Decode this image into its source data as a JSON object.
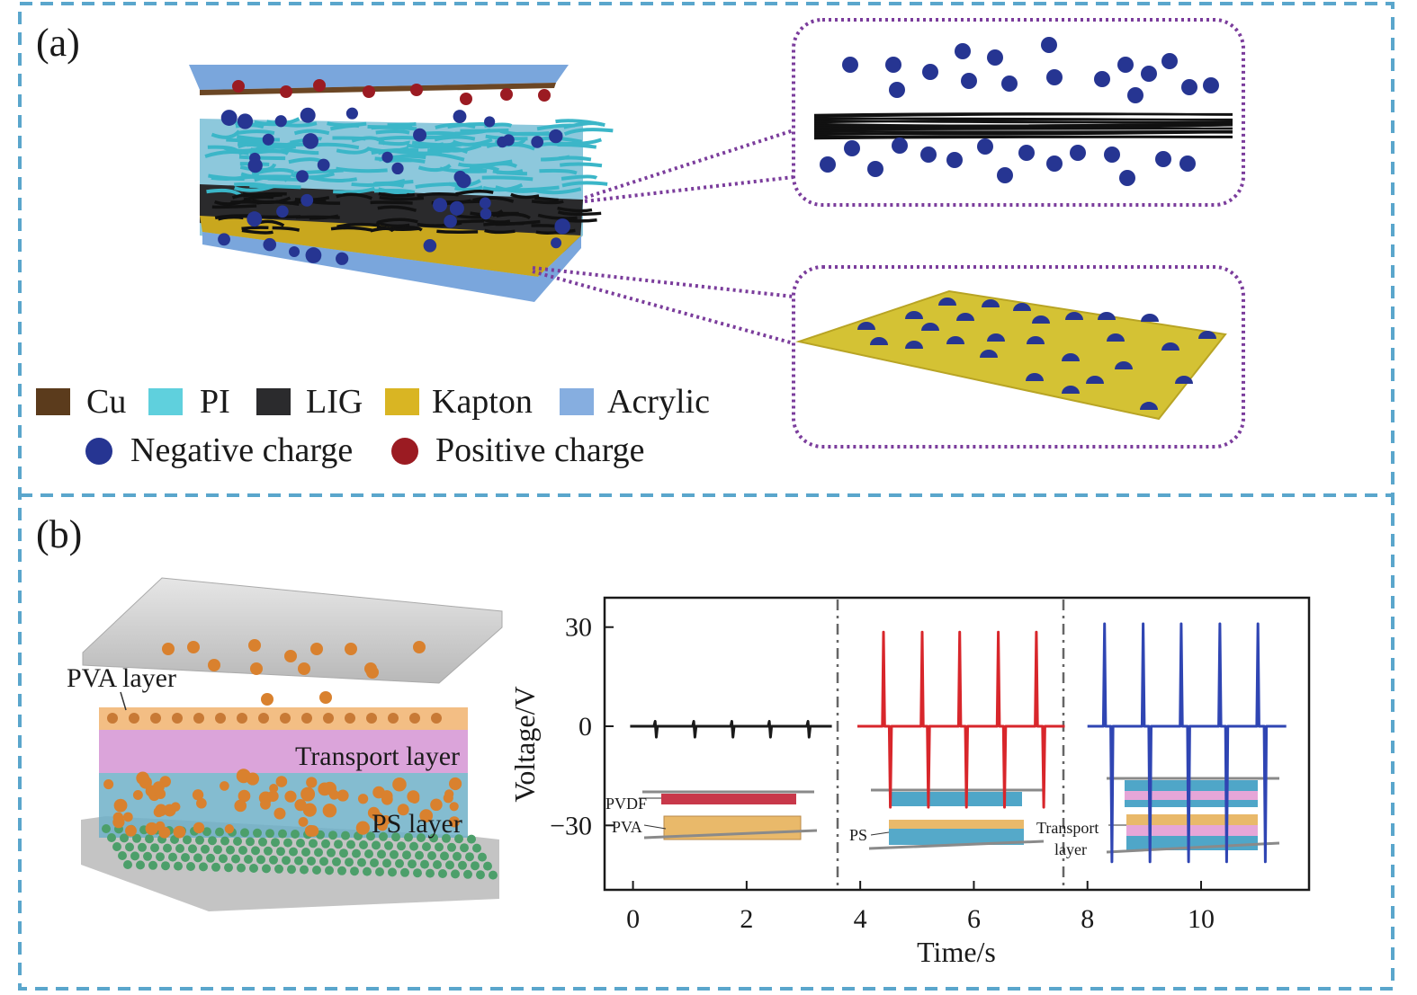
{
  "panel_a": {
    "label": "(a)",
    "legend": [
      {
        "name": "Cu",
        "color": "#5b3b1c"
      },
      {
        "name": "PI",
        "color": "#5fd0dd"
      },
      {
        "name": "LIG",
        "color": "#2b2b2d"
      },
      {
        "name": "Kapton",
        "color": "#d9b523"
      },
      {
        "name": "Acrylic",
        "color": "#86aee0"
      }
    ],
    "charges": [
      {
        "name": "Negative charge",
        "color": "#263592"
      },
      {
        "name": "Positive charge",
        "color": "#9b1b22"
      }
    ]
  },
  "panel_b": {
    "label": "(b)",
    "diagram_labels": [
      "PVA layer",
      "Transport layer",
      "PS layer"
    ],
    "inset_labels": {
      "pvdf": "PVDF",
      "pva": "PVA",
      "ps": "PS",
      "transport": [
        "Transport",
        "layer"
      ]
    }
  },
  "chart_data": {
    "type": "line",
    "xlabel": "Time/s",
    "ylabel": "Voltage/V",
    "xlim": [
      -0.5,
      11.9
    ],
    "ylim": [
      -49.5,
      38.9
    ],
    "xticks": [
      0,
      2,
      4,
      6,
      8,
      10
    ],
    "yticks": [
      30,
      0,
      {
        "value": -30,
        "label": "−30"
      }
    ],
    "series": [
      {
        "color": "#1a1a1a",
        "x": [
          -0.05,
          0.37,
          0.39,
          0.41,
          0.43,
          1.05,
          1.07,
          1.09,
          1.11,
          1.72,
          1.74,
          1.76,
          1.78,
          2.38,
          2.4,
          2.42,
          2.44,
          3.06,
          3.08,
          3.1,
          3.12,
          3.5
        ],
        "values": [
          0,
          0,
          1.5,
          -3.3,
          0,
          0,
          1.5,
          -3.3,
          0,
          0,
          1.5,
          -3.3,
          0,
          0,
          1.5,
          -3.3,
          0,
          0,
          1.5,
          -3.3,
          0,
          0
        ]
      },
      {
        "color": "#d8262b",
        "x": [
          3.95,
          4.39,
          4.41,
          4.43,
          4.51,
          4.53,
          4.55,
          5.07,
          5.09,
          5.11,
          5.18,
          5.2,
          5.22,
          5.73,
          5.75,
          5.77,
          5.85,
          5.87,
          5.89,
          6.41,
          6.43,
          6.45,
          6.52,
          6.54,
          6.56,
          7.08,
          7.1,
          7.12,
          7.21,
          7.23,
          7.25,
          7.6
        ],
        "values": [
          0,
          0,
          28.5,
          0,
          0,
          -24.5,
          0,
          0,
          28.5,
          0,
          0,
          -24.5,
          0,
          0,
          28.5,
          0,
          0,
          -24.5,
          0,
          0,
          28.5,
          0,
          0,
          -24.5,
          0,
          0,
          28.5,
          0,
          0,
          -24.5,
          0,
          0
        ]
      },
      {
        "color": "#2f45b3",
        "x": [
          8.0,
          8.28,
          8.3,
          8.32,
          8.41,
          8.43,
          8.45,
          8.96,
          8.98,
          9.0,
          9.08,
          9.1,
          9.12,
          9.63,
          9.65,
          9.67,
          9.76,
          9.78,
          9.8,
          10.31,
          10.33,
          10.35,
          10.43,
          10.45,
          10.47,
          10.98,
          11.0,
          11.02,
          11.11,
          11.13,
          11.15,
          11.5
        ],
        "values": [
          0,
          0,
          31,
          0,
          0,
          -41,
          0,
          0,
          31,
          0,
          0,
          -41,
          0,
          0,
          31,
          0,
          0,
          -41,
          0,
          0,
          31,
          0,
          0,
          -41,
          0,
          0,
          31,
          0,
          0,
          -41,
          0,
          0
        ]
      }
    ]
  }
}
